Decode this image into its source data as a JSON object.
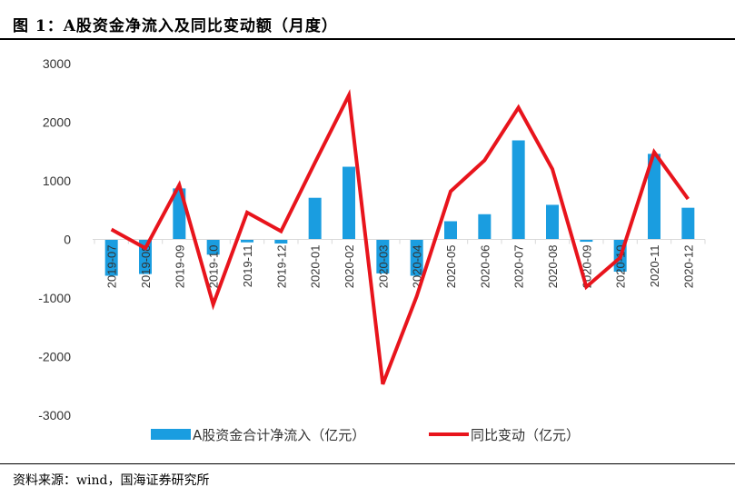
{
  "title": "图 1：A股资金净流入及同比变动额（月度）",
  "source": "资料来源：wind，国海证券研究所",
  "colors": {
    "bar": "#1a9de0",
    "line": "#e8141c",
    "axis": "#d9d9d9",
    "text": "#333333"
  },
  "chart_data": {
    "type": "bar",
    "categories": [
      "2019-07",
      "2019-08",
      "2019-09",
      "2019-10",
      "2019-11",
      "2019-12",
      "2020-01",
      "2020-02",
      "2020-03",
      "2020-04",
      "2020-05",
      "2020-06",
      "2020-07",
      "2020-08",
      "2020-09",
      "2020-10",
      "2020-11",
      "2020-12"
    ],
    "series": [
      {
        "name": "A股资金合计净流入（亿元）",
        "type": "bar",
        "values": [
          -620,
          -590,
          870,
          -260,
          -50,
          -70,
          710,
          1240,
          -580,
          -620,
          310,
          430,
          1690,
          590,
          -40,
          -550,
          1460,
          540
        ]
      },
      {
        "name": "同比变动（亿元）",
        "type": "line",
        "values": [
          170,
          -150,
          930,
          -1110,
          460,
          140,
          1310,
          2460,
          -2470,
          -970,
          820,
          1350,
          2250,
          1200,
          -810,
          -310,
          1490,
          690
        ]
      }
    ],
    "yticks": [
      "3000",
      "2000",
      "1000",
      "0",
      "-1000",
      "-2000",
      "-3000"
    ],
    "ylim": [
      -3000,
      3000
    ],
    "grid": false,
    "legend": "bottom-center"
  }
}
